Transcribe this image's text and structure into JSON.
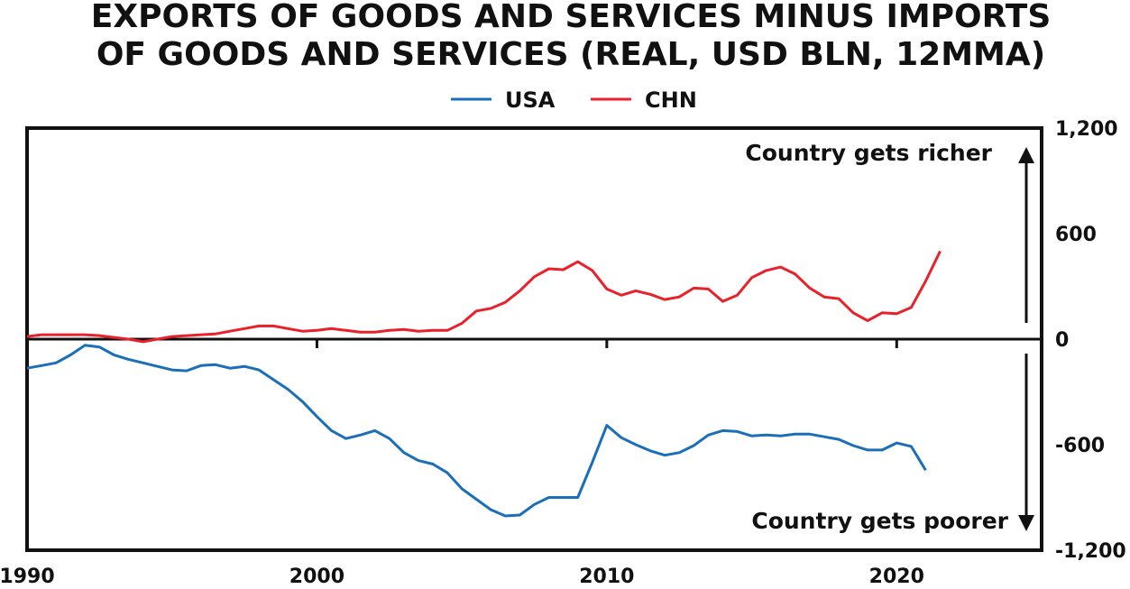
{
  "chart_data": {
    "type": "line",
    "title": "EXPORTS OF GOODS AND SERVICES MINUS IMPORTS",
    "subtitle": "OF GOODS AND SERVICES (REAL, USD BLN, 12MMA)",
    "annotations": [
      "Country gets richer",
      "Country gets poorer"
    ],
    "x": [
      1990,
      1990.5,
      1991,
      1991.5,
      1992,
      1992.5,
      1993,
      1993.5,
      1994,
      1994.5,
      1995,
      1995.5,
      1996,
      1996.5,
      1997,
      1997.5,
      1998,
      1998.5,
      1999,
      1999.5,
      2000,
      2000.5,
      2001,
      2001.5,
      2002,
      2002.5,
      2003,
      2003.5,
      2004,
      2004.5,
      2005,
      2005.5,
      2006,
      2006.5,
      2007,
      2007.5,
      2008,
      2008.5,
      2009,
      2009.5,
      2010,
      2010.5,
      2011,
      2011.5,
      2012,
      2012.5,
      2013,
      2013.5,
      2014,
      2014.5,
      2015,
      2015.5,
      2016,
      2016.5,
      2017,
      2017.5,
      2018,
      2018.5,
      2019,
      2019.5,
      2020,
      2020.5,
      2021,
      2021.5
    ],
    "series": [
      {
        "name": "USA",
        "color": "#1a6fb8",
        "values": [
          -165,
          -150,
          -135,
          -90,
          -35,
          -45,
          -90,
          -115,
          -135,
          -155,
          -175,
          -180,
          -150,
          -145,
          -165,
          -155,
          -175,
          -230,
          -285,
          -355,
          -440,
          -520,
          -565,
          -545,
          -520,
          -565,
          -645,
          -690,
          -710,
          -760,
          -850,
          -910,
          -970,
          -1005,
          -1000,
          -940,
          -900,
          -900,
          -900,
          -700,
          -490,
          -560,
          -600,
          -635,
          -660,
          -645,
          -605,
          -545,
          -520,
          -525,
          -550,
          -545,
          -550,
          -540,
          -540,
          -555,
          -570,
          -605,
          -630,
          -630,
          -590,
          -610,
          -745,
          null
        ]
      },
      {
        "name": "CHN",
        "color": "#e8212b",
        "values": [
          15,
          25,
          25,
          25,
          25,
          20,
          10,
          0,
          -15,
          0,
          15,
          20,
          25,
          30,
          45,
          60,
          75,
          75,
          60,
          45,
          50,
          60,
          50,
          40,
          40,
          50,
          55,
          45,
          50,
          50,
          90,
          160,
          175,
          210,
          275,
          355,
          400,
          395,
          440,
          390,
          285,
          250,
          275,
          255,
          225,
          240,
          290,
          285,
          215,
          250,
          350,
          390,
          410,
          370,
          290,
          240,
          230,
          150,
          105,
          150,
          145,
          180,
          330,
          500
        ]
      }
    ],
    "xlim": [
      1990,
      2025
    ],
    "xticks": [
      1990,
      2000,
      2010,
      2020
    ],
    "ylim": [
      -1200,
      1200
    ],
    "yticks": [
      {
        "value": 1200,
        "label": "1,200"
      },
      600,
      0,
      -600,
      {
        "value": -1200,
        "label": "-1,200"
      }
    ]
  }
}
